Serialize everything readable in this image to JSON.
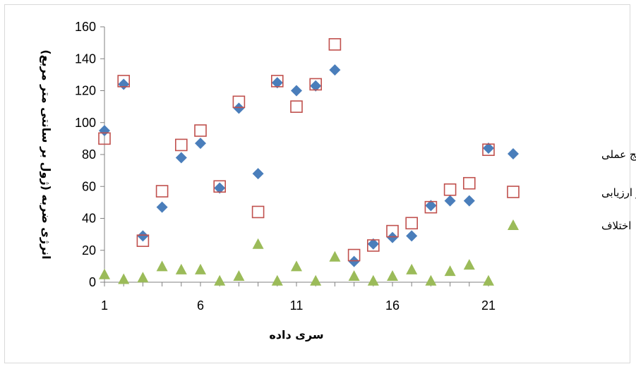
{
  "chart_data": {
    "type": "scatter",
    "xlabel": "سری داده",
    "ylabel": "انرژی ضربه (ژول بر سانتی متر مربع)",
    "xlim": [
      1,
      21
    ],
    "ylim": [
      0,
      160
    ],
    "yticks": [
      "0",
      "20",
      "40",
      "60",
      "80",
      "100",
      "120",
      "140",
      "160"
    ],
    "xticks": [
      "1",
      "6",
      "11",
      "16",
      "21"
    ],
    "legend_position": "right",
    "grid": false,
    "x": [
      1,
      2,
      3,
      4,
      5,
      6,
      7,
      8,
      9,
      10,
      11,
      12,
      13,
      14,
      15,
      16,
      17,
      18,
      19,
      20,
      21
    ],
    "series": [
      {
        "name": "نتایج عملی",
        "marker": "diamond",
        "color": "#4a7ebb",
        "values": [
          95,
          124,
          29,
          47,
          78,
          87,
          59,
          109,
          68,
          125,
          120,
          123,
          133,
          13,
          24,
          28,
          29,
          48,
          51,
          51,
          84
        ]
      },
      {
        "name": "نتایج فاز ارزیابی",
        "marker": "square-open",
        "color": "#c0504d",
        "values": [
          90,
          126,
          26,
          57,
          86,
          95,
          60,
          113,
          44,
          126,
          110,
          124,
          149,
          17,
          23,
          32,
          37,
          47,
          58,
          62,
          83
        ]
      },
      {
        "name": "اختلاف",
        "marker": "triangle",
        "color": "#9bbb59",
        "values": [
          5,
          2,
          3,
          10,
          8,
          8,
          1,
          4,
          24,
          1,
          10,
          1,
          16,
          4,
          1,
          4,
          8,
          1,
          7,
          11,
          1
        ]
      }
    ]
  }
}
